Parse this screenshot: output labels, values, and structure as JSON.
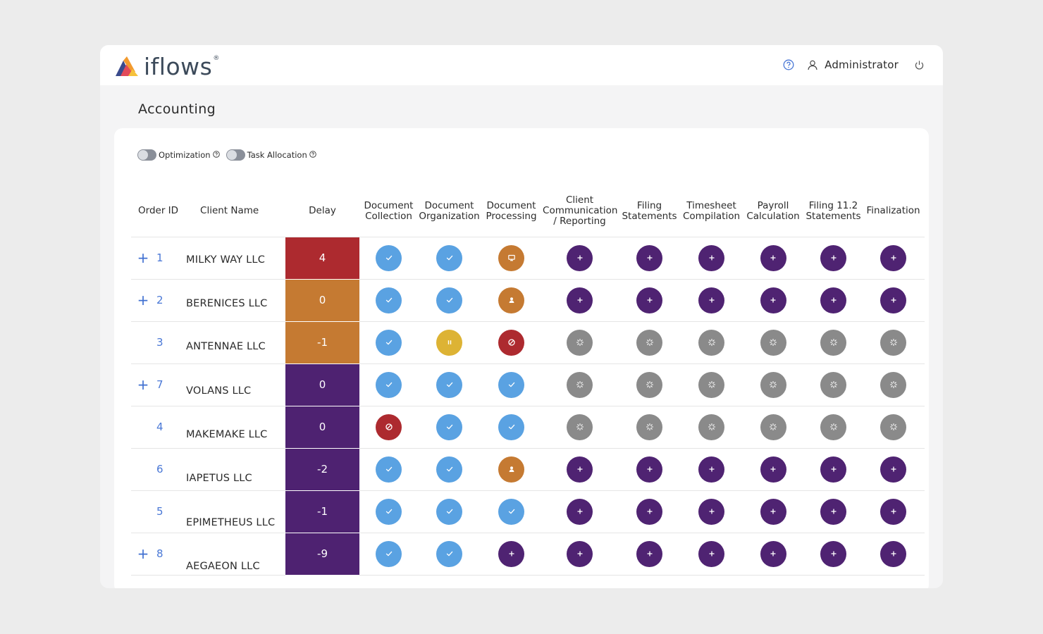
{
  "app": {
    "logo_text": "iflows",
    "logo_reg": "®",
    "user_name": "Administrator"
  },
  "page": {
    "title": "Accounting"
  },
  "toggles": [
    {
      "label": "Optimization",
      "on": false
    },
    {
      "label": "Task Allocation",
      "on": false
    }
  ],
  "columns": {
    "order_id": "Order ID",
    "client_name": "Client Name",
    "delay": "Delay",
    "stages": [
      "Document Collection",
      "Document Organization",
      "Document Processing",
      "Client Communication / Reporting",
      "Filing Statements",
      "Timesheet Compilation",
      "Payroll Calculation",
      "Filing 11.2 Statements",
      "Finalization"
    ]
  },
  "colors": {
    "delay_red": "#ad2a2f",
    "delay_orange": "#c57a32",
    "delay_purple": "#4e2271",
    "done": "#5aa2e2",
    "pending": "#4f2372",
    "waiting": "#8a8a8a",
    "paused": "#ddb334",
    "blocked": "#ad2a2f",
    "in_progress": "#c57a32"
  },
  "icon_names": {
    "done": "check-icon",
    "pending": "plus-icon",
    "waiting": "spinner-icon",
    "paused": "pause-icon",
    "blocked": "blocked-icon",
    "in_progress_screen": "monitor-icon",
    "in_progress_user": "user-icon"
  },
  "rows": [
    {
      "expand": "+",
      "id": "1",
      "client": "MILKY WAY LLC",
      "delay": "4",
      "delay_color": "red",
      "stages": [
        "done",
        "done",
        "screen",
        "pending",
        "pending",
        "pending",
        "pending",
        "pending",
        "pending"
      ]
    },
    {
      "expand": "+",
      "id": "2",
      "client": "BERENICES LLC",
      "delay": "0",
      "delay_color": "orange",
      "stages": [
        "done",
        "done",
        "user",
        "pending",
        "pending",
        "pending",
        "pending",
        "pending",
        "pending"
      ]
    },
    {
      "expand": "",
      "id": "3",
      "client": "ANTENNAE LLC",
      "delay": "-1",
      "delay_color": "orange",
      "stages": [
        "done",
        "paused",
        "blocked",
        "waiting",
        "waiting",
        "waiting",
        "waiting",
        "waiting",
        "waiting"
      ]
    },
    {
      "expand": "+",
      "id": "7",
      "client": "VOLANS LLC",
      "delay": "0",
      "delay_color": "purple",
      "stages": [
        "done",
        "done",
        "done",
        "waiting",
        "waiting",
        "waiting",
        "waiting",
        "waiting",
        "waiting"
      ]
    },
    {
      "expand": "",
      "id": "4",
      "client": "MAKEMAKE LLC",
      "delay": "0",
      "delay_color": "purple",
      "stages": [
        "blocked",
        "done",
        "done",
        "waiting",
        "waiting",
        "waiting",
        "waiting",
        "waiting",
        "waiting"
      ]
    },
    {
      "expand": "",
      "id": "6",
      "client": "IAPETUS LLC",
      "delay": "-2",
      "delay_color": "purple",
      "stages": [
        "done",
        "done",
        "user",
        "pending",
        "pending",
        "pending",
        "pending",
        "pending",
        "pending"
      ]
    },
    {
      "expand": "",
      "id": "5",
      "client": "EPIMETHEUS LLC",
      "delay": "-1",
      "delay_color": "purple",
      "stages": [
        "done",
        "done",
        "done",
        "pending",
        "pending",
        "pending",
        "pending",
        "pending",
        "pending"
      ]
    },
    {
      "expand": "+",
      "id": "8",
      "client": "AEGAEON LLC",
      "delay": "-9",
      "delay_color": "purple",
      "stages": [
        "done",
        "done",
        "pending",
        "pending",
        "pending",
        "pending",
        "pending",
        "pending",
        "pending"
      ]
    }
  ]
}
